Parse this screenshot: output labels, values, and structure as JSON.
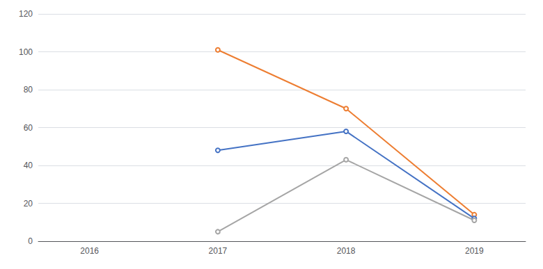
{
  "chart_data": {
    "type": "line",
    "x": [
      2017,
      2018,
      2019
    ],
    "series": [
      {
        "color": "#ED7D31",
        "values": [
          101,
          70,
          14
        ]
      },
      {
        "color": "#4472C4",
        "values": [
          48,
          58,
          12
        ]
      },
      {
        "color": "#A5A5A5",
        "values": [
          5,
          43,
          11
        ]
      }
    ],
    "xlim": [
      2015.6,
      2019.4
    ],
    "xticks": [
      2016,
      2017,
      2018,
      2019
    ],
    "ylim": [
      0,
      120
    ],
    "yticks": [
      0,
      20,
      40,
      60,
      80,
      100,
      120
    ],
    "grid": true
  }
}
